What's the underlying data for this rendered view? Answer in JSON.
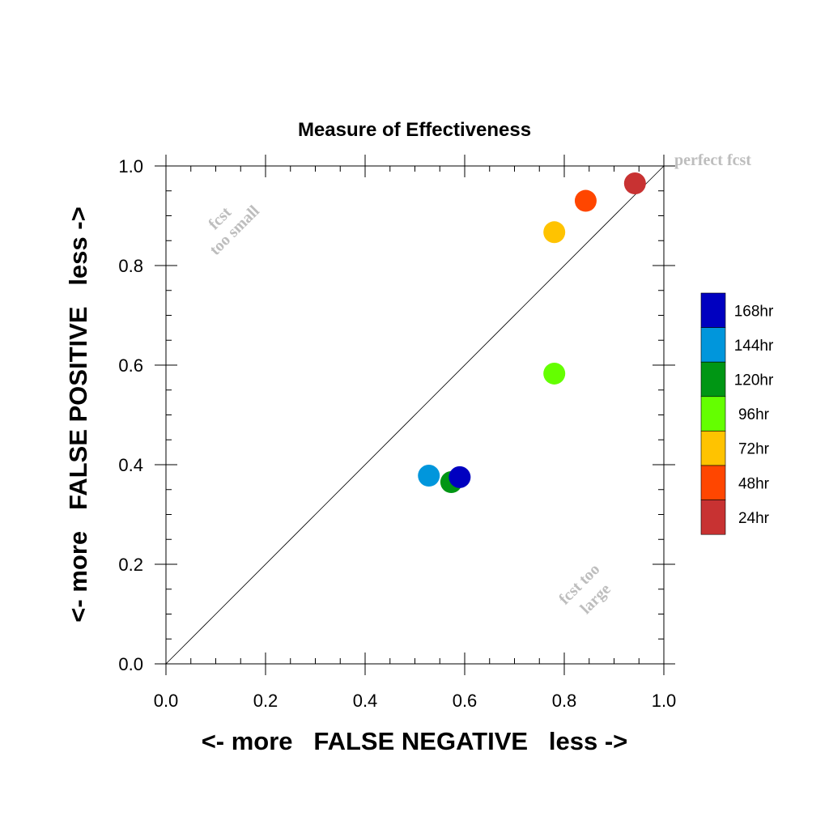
{
  "chart_data": {
    "type": "scatter",
    "title": "Measure of Effectiveness",
    "xlabel": "<- more   FALSE NEGATIVE   less ->",
    "ylabel": "<- more   FALSE POSITIVE   less ->",
    "xlim": [
      0.0,
      1.0
    ],
    "ylim": [
      0.0,
      1.0
    ],
    "xticks": [
      "0.0",
      "0.2",
      "0.4",
      "0.6",
      "0.8",
      "1.0"
    ],
    "yticks": [
      "0.0",
      "0.2",
      "0.4",
      "0.6",
      "0.8",
      "1.0"
    ],
    "grid": false,
    "reference_line": "diagonal y = x",
    "annotations": {
      "perfect": "perfect fcst",
      "too_small": [
        "fcst",
        "too small"
      ],
      "too_large": [
        "fcst too",
        "large"
      ]
    },
    "legend_position": "right",
    "series": [
      {
        "name": "168hr",
        "color": "#0000c0",
        "x": 0.59,
        "y": 0.375
      },
      {
        "name": "144hr",
        "color": "#0096dc",
        "x": 0.528,
        "y": 0.378
      },
      {
        "name": "120hr",
        "color": "#009614",
        "x": 0.573,
        "y": 0.365
      },
      {
        "name": "96hr",
        "color": "#64ff00",
        "x": 0.78,
        "y": 0.583
      },
      {
        "name": "72hr",
        "color": "#ffc300",
        "x": 0.78,
        "y": 0.867
      },
      {
        "name": "48hr",
        "color": "#ff4600",
        "x": 0.843,
        "y": 0.93
      },
      {
        "name": "24hr",
        "color": "#c83232",
        "x": 0.942,
        "y": 0.965
      }
    ]
  }
}
